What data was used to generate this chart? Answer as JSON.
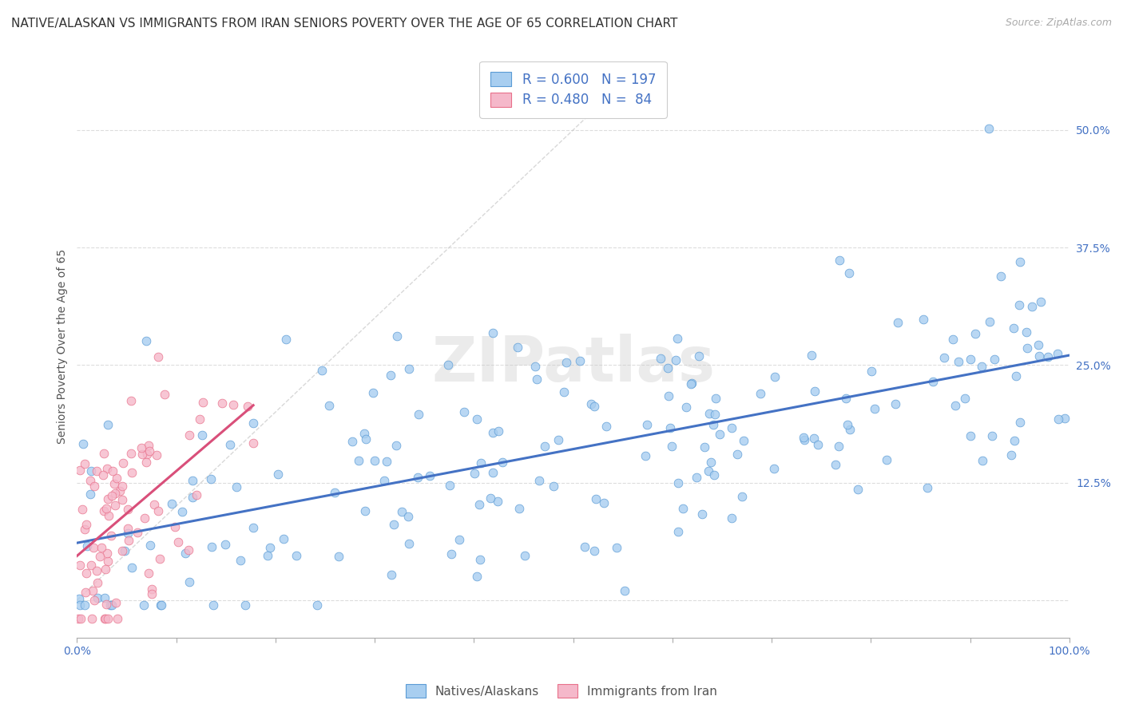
{
  "title": "NATIVE/ALASKAN VS IMMIGRANTS FROM IRAN SENIORS POVERTY OVER THE AGE OF 65 CORRELATION CHART",
  "source": "Source: ZipAtlas.com",
  "ylabel": "Seniors Poverty Over the Age of 65",
  "ytick_values": [
    0.0,
    0.125,
    0.25,
    0.375,
    0.5
  ],
  "xlim": [
    0.0,
    1.0
  ],
  "ylim": [
    -0.04,
    0.58
  ],
  "blue_R": 0.6,
  "blue_N": 197,
  "pink_R": 0.48,
  "pink_N": 84,
  "blue_color": "#A8CEF0",
  "pink_color": "#F5B8CA",
  "blue_edge_color": "#5B9BD5",
  "pink_edge_color": "#E8708A",
  "blue_line_color": "#4472C4",
  "pink_line_color": "#D94F7A",
  "diagonal_color": "#C8C8C8",
  "background_color": "#FFFFFF",
  "grid_color": "#DDDDDD",
  "watermark": "ZIPatlas",
  "legend_label_blue": "Natives/Alaskans",
  "legend_label_pink": "Immigrants from Iran",
  "title_fontsize": 11,
  "axis_label_color": "#4472C4",
  "text_color": "#555555",
  "blue_seed": 12,
  "pink_seed": 99
}
